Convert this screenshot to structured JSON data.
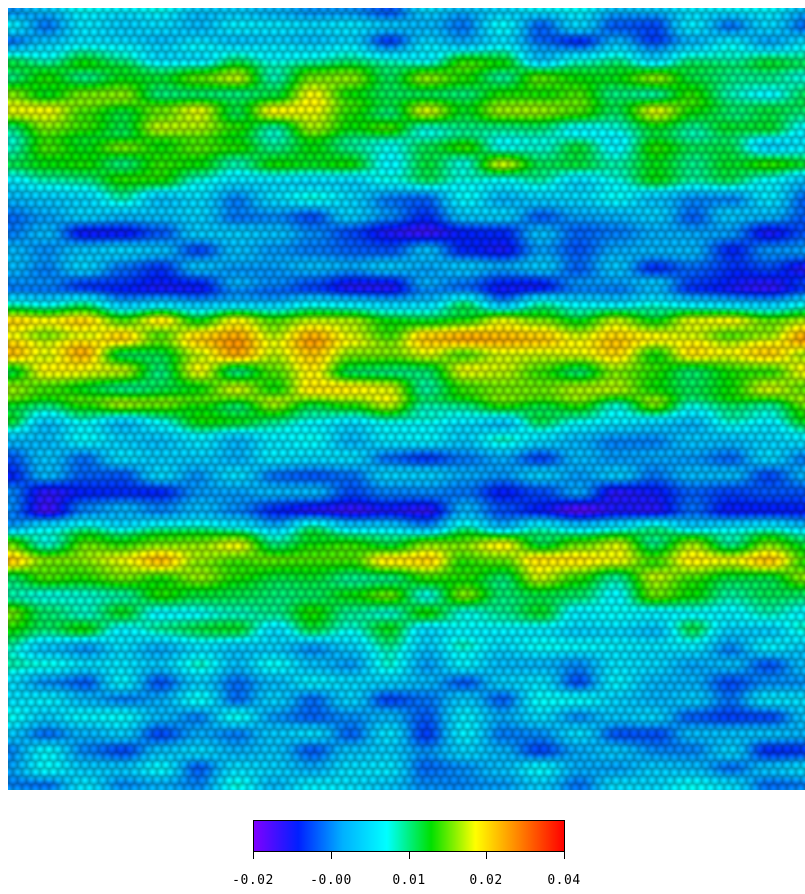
{
  "image": {
    "description_type": "strain map over hexagonal atomic lattice",
    "band_profile": [
      {
        "y": 0.0,
        "v": 0.0
      },
      {
        "y": 0.04,
        "v": -0.002
      },
      {
        "y": 0.08,
        "v": 0.012
      },
      {
        "y": 0.12,
        "v": 0.016
      },
      {
        "y": 0.16,
        "v": 0.01
      },
      {
        "y": 0.2,
        "v": 0.014
      },
      {
        "y": 0.24,
        "v": 0.002
      },
      {
        "y": 0.28,
        "v": -0.006
      },
      {
        "y": 0.32,
        "v": -0.004
      },
      {
        "y": 0.36,
        "v": -0.008
      },
      {
        "y": 0.4,
        "v": 0.02
      },
      {
        "y": 0.43,
        "v": 0.024
      },
      {
        "y": 0.47,
        "v": 0.016
      },
      {
        "y": 0.5,
        "v": 0.018
      },
      {
        "y": 0.53,
        "v": 0.006
      },
      {
        "y": 0.57,
        "v": 0.0
      },
      {
        "y": 0.6,
        "v": -0.004
      },
      {
        "y": 0.64,
        "v": -0.008
      },
      {
        "y": 0.67,
        "v": 0.012
      },
      {
        "y": 0.7,
        "v": 0.022
      },
      {
        "y": 0.74,
        "v": 0.014
      },
      {
        "y": 0.78,
        "v": 0.01
      },
      {
        "y": 0.82,
        "v": 0.001
      },
      {
        "y": 0.86,
        "v": -0.001
      },
      {
        "y": 0.9,
        "v": 0.0
      },
      {
        "y": 0.94,
        "v": -0.002
      },
      {
        "y": 1.0,
        "v": 0.002
      }
    ]
  },
  "colorbar": {
    "colors": [
      "#7f00ff",
      "#0020ff",
      "#00b0ff",
      "#00ffff",
      "#00e000",
      "#ffff00",
      "#ff8000",
      "#ff0000"
    ],
    "ticks": [
      "-0.02",
      "-0.00",
      "0.01",
      "0.02",
      "0.04"
    ],
    "min": -0.02,
    "max": 0.04
  }
}
